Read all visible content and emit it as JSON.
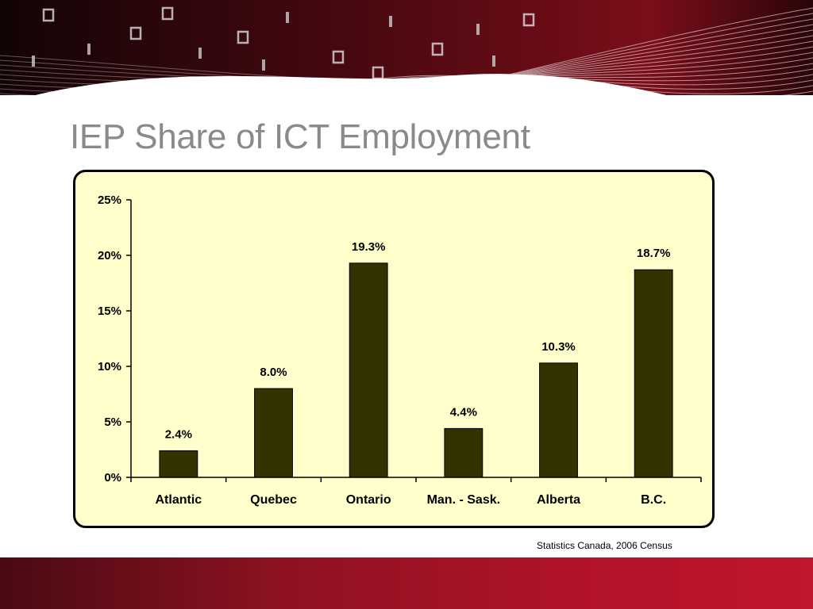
{
  "slide": {
    "title": "IEP Share of ICT Employment",
    "source": "Statistics Canada, 2006 Census"
  },
  "colors": {
    "bar": "#333300",
    "plot_background": "#ffffcc",
    "title": "#8a8a8a",
    "footer": "#b0132a"
  },
  "chart_data": {
    "type": "bar",
    "categories": [
      "Atlantic",
      "Quebec",
      "Ontario",
      "Man. - Sask.",
      "Alberta",
      "B.C."
    ],
    "values": [
      2.4,
      8.0,
      19.3,
      4.4,
      10.3,
      18.7
    ],
    "data_labels": [
      "2.4%",
      "8.0%",
      "19.3%",
      "4.4%",
      "10.3%",
      "18.7%"
    ],
    "yticks": [
      0,
      5,
      10,
      15,
      20,
      25
    ],
    "ytick_labels": [
      "0%",
      "5%",
      "10%",
      "15%",
      "20%",
      "25%"
    ],
    "ylim": [
      0,
      25
    ],
    "grid": false,
    "legend": "none"
  }
}
